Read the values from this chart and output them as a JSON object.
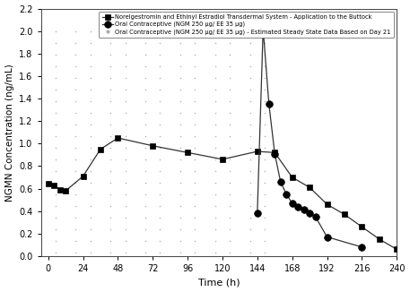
{
  "title": "",
  "xlabel": "Time (h)",
  "ylabel": "NGMN Concentration (ng/mL)",
  "xlim": [
    -5,
    240
  ],
  "ylim": [
    0.0,
    2.2
  ],
  "yticks": [
    0.0,
    0.2,
    0.4,
    0.6,
    0.8,
    1.0,
    1.2,
    1.4,
    1.6,
    1.8,
    2.0,
    2.2
  ],
  "xticks": [
    0,
    24,
    48,
    72,
    96,
    120,
    144,
    168,
    192,
    216,
    240
  ],
  "patch_x": [
    0,
    4,
    8,
    12,
    24,
    36,
    48,
    72,
    96,
    120,
    144,
    156,
    168,
    180,
    192,
    204,
    216,
    228,
    240
  ],
  "patch_y": [
    0.64,
    0.63,
    0.59,
    0.58,
    0.71,
    0.95,
    1.05,
    0.98,
    0.92,
    0.86,
    0.93,
    0.92,
    0.7,
    0.61,
    0.46,
    0.37,
    0.26,
    0.15,
    0.06
  ],
  "oral_x": [
    144,
    148,
    152,
    156,
    160,
    164,
    168,
    172,
    176,
    180,
    184,
    192,
    216
  ],
  "oral_y": [
    0.38,
    2.02,
    1.35,
    0.91,
    0.66,
    0.55,
    0.47,
    0.44,
    0.41,
    0.38,
    0.35,
    0.17,
    0.08
  ],
  "legend_patch": "Norelgestromin and Ethinyl Estradiol Transdermal System - Application to the Buttock",
  "legend_oral": "Oral Contraceptive (NGM 250 μg/ EE 35 μg)",
  "legend_dots": "Oral Contraceptive (NGM 250 μg/ EE 35 μg) - Estimated Steady State Data Based on Day 21",
  "line_color": "#333333",
  "dot_color": "#aaaaaa",
  "bg_color": "#ffffff",
  "dot_col_centers": [
    0,
    24,
    48,
    72,
    96,
    120,
    144
  ],
  "dot_col_offsets": [
    -5,
    5
  ],
  "dot_y_min": 0.03,
  "dot_y_max": 2.0,
  "dot_n_per_col": 20
}
